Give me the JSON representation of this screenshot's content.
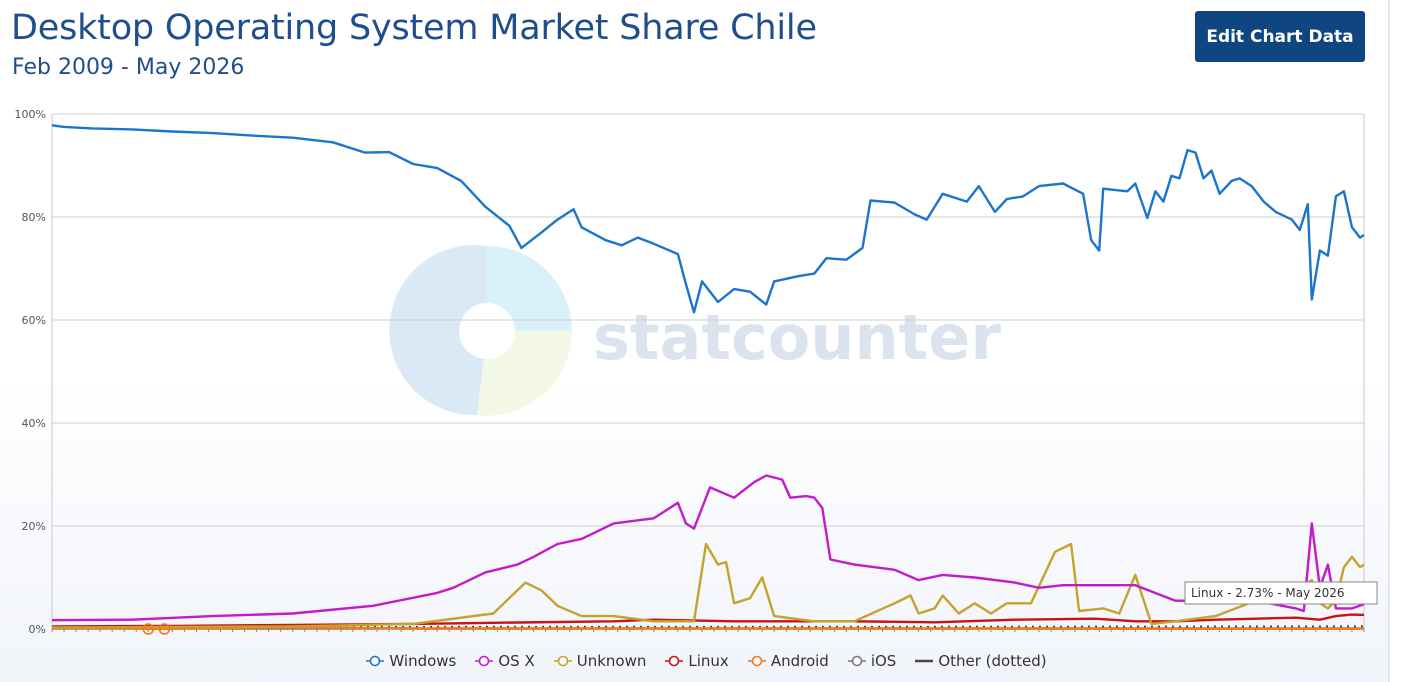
{
  "header": {
    "title": "Desktop Operating System Market Share Chile",
    "subtitle": "Feb 2009 - May 2026",
    "edit_button": "Edit Chart Data"
  },
  "watermark": {
    "text": "statcounter"
  },
  "tooltip": {
    "text": "Linux - 2.73% - May 2026"
  },
  "chart_data": {
    "type": "line",
    "title": "Desktop Operating System Market Share Chile",
    "subtitle": "Feb 2009 - May 2026",
    "x_range": [
      "Feb 2009",
      "May 2026"
    ],
    "ylim": [
      0,
      100
    ],
    "y_ticks": [
      "0%",
      "20%",
      "40%",
      "60%",
      "80%",
      "100%"
    ],
    "grid": true,
    "legend_position": "bottom",
    "series": [
      {
        "name": "Windows",
        "color": "#1b75cc",
        "marker": "circle",
        "points": [
          [
            0,
            97.8
          ],
          [
            3,
            97.5
          ],
          [
            10,
            97.2
          ],
          [
            20,
            97.0
          ],
          [
            30,
            96.6
          ],
          [
            40,
            96.3
          ],
          [
            50,
            95.8
          ],
          [
            60,
            95.4
          ],
          [
            70,
            94.5
          ],
          [
            78,
            92.5
          ],
          [
            84,
            92.6
          ],
          [
            90,
            90.3
          ],
          [
            96,
            89.5
          ],
          [
            102,
            87.0
          ],
          [
            108,
            82.0
          ],
          [
            114,
            78.3
          ],
          [
            117,
            74.0
          ],
          [
            122,
            77.0
          ],
          [
            126,
            79.5
          ],
          [
            130,
            81.5
          ],
          [
            132,
            78.0
          ],
          [
            138,
            75.5
          ],
          [
            142,
            74.5
          ],
          [
            146,
            76.0
          ],
          [
            150,
            74.8
          ],
          [
            156,
            72.8
          ],
          [
            158,
            67.0
          ],
          [
            160,
            61.5
          ],
          [
            162,
            67.5
          ],
          [
            166,
            63.5
          ],
          [
            170,
            66.0
          ],
          [
            174,
            65.5
          ],
          [
            178,
            63.0
          ],
          [
            180,
            67.5
          ],
          [
            186,
            68.5
          ],
          [
            190,
            69.0
          ],
          [
            193,
            72.0
          ],
          [
            198,
            71.7
          ],
          [
            202,
            74.0
          ],
          [
            204,
            83.2
          ],
          [
            210,
            82.8
          ],
          [
            215,
            80.5
          ],
          [
            218,
            79.5
          ],
          [
            222,
            84.5
          ],
          [
            228,
            83.0
          ],
          [
            231,
            86.0
          ],
          [
            235,
            81.0
          ],
          [
            238,
            83.5
          ],
          [
            242,
            84.0
          ],
          [
            246,
            86.0
          ],
          [
            252,
            86.5
          ],
          [
            257,
            84.5
          ],
          [
            259,
            75.5
          ],
          [
            261,
            73.5
          ],
          [
            262,
            85.5
          ],
          [
            268,
            85.0
          ],
          [
            270,
            86.5
          ],
          [
            273,
            79.8
          ],
          [
            275,
            85.0
          ],
          [
            277,
            83.0
          ],
          [
            279,
            88.0
          ],
          [
            281,
            87.5
          ],
          [
            283,
            93.0
          ],
          [
            285,
            92.5
          ],
          [
            287,
            87.5
          ],
          [
            289,
            89.0
          ],
          [
            291,
            84.5
          ],
          [
            294,
            87.0
          ],
          [
            296,
            87.5
          ],
          [
            299,
            86.0
          ],
          [
            302,
            83.0
          ],
          [
            305,
            81.0
          ],
          [
            309,
            79.5
          ],
          [
            311,
            77.5
          ],
          [
            313,
            82.5
          ],
          [
            314,
            64.0
          ],
          [
            316,
            73.5
          ],
          [
            318,
            72.5
          ],
          [
            320,
            84.0
          ],
          [
            322,
            85.0
          ],
          [
            324,
            78.0
          ],
          [
            326,
            76.0
          ],
          [
            327,
            76.5
          ]
        ]
      },
      {
        "name": "OS X",
        "color": "#c21bc9",
        "marker": "circle",
        "points": [
          [
            0,
            1.7
          ],
          [
            20,
            1.8
          ],
          [
            40,
            2.5
          ],
          [
            60,
            3.0
          ],
          [
            80,
            4.5
          ],
          [
            96,
            7.0
          ],
          [
            100,
            8.0
          ],
          [
            108,
            11.0
          ],
          [
            116,
            12.5
          ],
          [
            120,
            14.0
          ],
          [
            126,
            16.5
          ],
          [
            132,
            17.5
          ],
          [
            140,
            20.5
          ],
          [
            150,
            21.5
          ],
          [
            156,
            24.5
          ],
          [
            158,
            20.5
          ],
          [
            160,
            19.5
          ],
          [
            164,
            27.5
          ],
          [
            170,
            25.5
          ],
          [
            175,
            28.5
          ],
          [
            178,
            29.8
          ],
          [
            182,
            29.0
          ],
          [
            184,
            25.5
          ],
          [
            188,
            25.8
          ],
          [
            190,
            25.5
          ],
          [
            192,
            23.5
          ],
          [
            194,
            13.5
          ],
          [
            200,
            12.5
          ],
          [
            210,
            11.5
          ],
          [
            216,
            9.5
          ],
          [
            222,
            10.5
          ],
          [
            230,
            10.0
          ],
          [
            240,
            9.0
          ],
          [
            246,
            8.0
          ],
          [
            252,
            8.5
          ],
          [
            260,
            8.5
          ],
          [
            270,
            8.5
          ],
          [
            280,
            5.5
          ],
          [
            290,
            5.5
          ],
          [
            300,
            5.5
          ],
          [
            310,
            4.0
          ],
          [
            312,
            3.5
          ],
          [
            314,
            20.5
          ],
          [
            316,
            8.0
          ],
          [
            318,
            12.5
          ],
          [
            320,
            4.0
          ],
          [
            324,
            4.0
          ],
          [
            327,
            4.8
          ]
        ]
      },
      {
        "name": "Unknown",
        "color": "#c4a32c",
        "marker": "circle",
        "points": [
          [
            0,
            0.3
          ],
          [
            60,
            0.5
          ],
          [
            90,
            1.0
          ],
          [
            110,
            3.0
          ],
          [
            118,
            9.0
          ],
          [
            122,
            7.5
          ],
          [
            126,
            4.5
          ],
          [
            132,
            2.5
          ],
          [
            140,
            2.5
          ],
          [
            150,
            1.5
          ],
          [
            160,
            1.5
          ],
          [
            163,
            16.5
          ],
          [
            166,
            12.5
          ],
          [
            168,
            13.0
          ],
          [
            170,
            5.0
          ],
          [
            174,
            6.0
          ],
          [
            177,
            10.0
          ],
          [
            180,
            2.5
          ],
          [
            190,
            1.5
          ],
          [
            200,
            1.5
          ],
          [
            210,
            5.0
          ],
          [
            214,
            6.5
          ],
          [
            216,
            3.0
          ],
          [
            220,
            4.0
          ],
          [
            222,
            6.5
          ],
          [
            226,
            3.0
          ],
          [
            230,
            5.0
          ],
          [
            234,
            3.0
          ],
          [
            238,
            5.0
          ],
          [
            244,
            5.0
          ],
          [
            250,
            15.0
          ],
          [
            254,
            16.5
          ],
          [
            256,
            3.5
          ],
          [
            262,
            4.0
          ],
          [
            266,
            3.0
          ],
          [
            270,
            10.5
          ],
          [
            274,
            1.0
          ],
          [
            280,
            1.5
          ],
          [
            290,
            2.5
          ],
          [
            300,
            5.5
          ],
          [
            310,
            7.5
          ],
          [
            314,
            9.5
          ],
          [
            316,
            5.0
          ],
          [
            318,
            4.0
          ],
          [
            320,
            5.5
          ],
          [
            322,
            12.0
          ],
          [
            324,
            14.0
          ],
          [
            326,
            12.0
          ],
          [
            327,
            12.5
          ]
        ]
      },
      {
        "name": "Linux",
        "color": "#c81414",
        "marker": "circle",
        "points": [
          [
            0,
            0.5
          ],
          [
            30,
            0.6
          ],
          [
            60,
            0.8
          ],
          [
            90,
            1.0
          ],
          [
            110,
            1.2
          ],
          [
            140,
            1.5
          ],
          [
            150,
            1.8
          ],
          [
            170,
            1.5
          ],
          [
            200,
            1.5
          ],
          [
            220,
            1.3
          ],
          [
            240,
            1.8
          ],
          [
            260,
            2.0
          ],
          [
            270,
            1.5
          ],
          [
            280,
            1.5
          ],
          [
            290,
            1.8
          ],
          [
            300,
            2.0
          ],
          [
            310,
            2.2
          ],
          [
            316,
            1.8
          ],
          [
            320,
            2.5
          ],
          [
            324,
            2.8
          ],
          [
            327,
            2.73
          ]
        ]
      },
      {
        "name": "Android",
        "color": "#f07a1c",
        "marker": "circle",
        "points": [
          [
            0,
            0.2
          ],
          [
            20,
            0.1
          ],
          [
            25,
            0.0
          ],
          [
            30,
            0.1
          ],
          [
            60,
            0.3
          ],
          [
            90,
            0.1
          ],
          [
            94,
            0.05
          ],
          [
            98,
            0.1
          ],
          [
            327,
            0.05
          ]
        ]
      },
      {
        "name": "iOS",
        "color": "#7a7a7a",
        "marker": "circle",
        "points": [
          [
            0,
            0.1
          ],
          [
            327,
            0.1
          ]
        ]
      },
      {
        "name": "Other (dotted)",
        "color": "#444444",
        "marker": "line",
        "points": [
          [
            0,
            0.3
          ],
          [
            100,
            0.4
          ],
          [
            200,
            0.4
          ],
          [
            327,
            0.5
          ]
        ]
      }
    ]
  }
}
